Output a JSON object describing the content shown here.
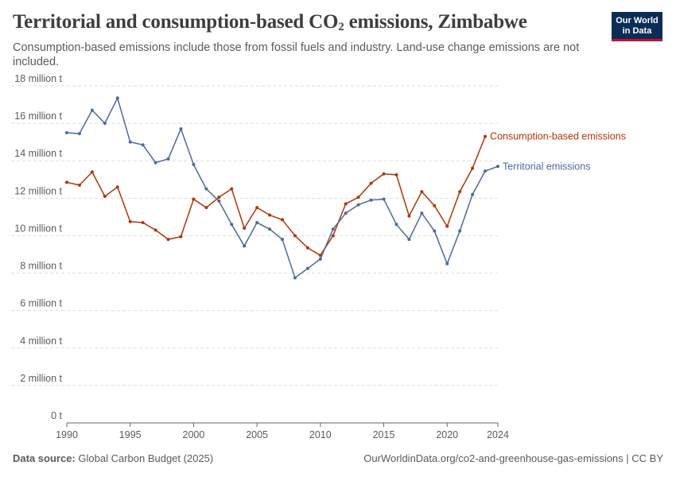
{
  "header": {
    "title_main": "Territorial and consumption-based CO",
    "title_sub": "2",
    "title_tail": " emissions, Zimbabwe",
    "subtitle": "Consumption-based emissions include those from fossil fuels and industry. Land-use change emissions are not included."
  },
  "logo": {
    "line1": "Our World",
    "line2": "in Data"
  },
  "footer": {
    "source_label": "Data source:",
    "source_value": "Global Carbon Budget (2025)",
    "url": "OurWorldinData.org/co2-and-greenhouse-gas-emissions | CC BY"
  },
  "colors": {
    "consumption": "#b13507",
    "territorial": "#4c6a9c",
    "grid": "#dddddd",
    "axis": "#666666",
    "text": "#5b5b5b"
  },
  "chart_data": {
    "type": "line",
    "title": "Territorial and consumption-based CO2 emissions, Zimbabwe",
    "ylim": [
      0,
      18
    ],
    "xlim": [
      1990,
      2024
    ],
    "yticks": [
      0,
      2,
      4,
      6,
      8,
      10,
      12,
      14,
      16,
      18
    ],
    "ytick_labels": [
      "0 t",
      "2 million t",
      "4 million t",
      "6 million t",
      "8 million t",
      "10 million t",
      "12 million t",
      "14 million t",
      "16 million t",
      "18 million t"
    ],
    "xticks": [
      1990,
      1995,
      2000,
      2005,
      2010,
      2015,
      2020,
      2024
    ],
    "xtick_labels": [
      "1990",
      "1995",
      "2000",
      "2005",
      "2010",
      "2015",
      "2020",
      "2024"
    ],
    "grid": true,
    "legend": "right-end-labels",
    "series": [
      {
        "name": "Consumption-based emissions",
        "color": "#b13507",
        "x": [
          1990,
          1991,
          1992,
          1993,
          1994,
          1995,
          1996,
          1997,
          1998,
          1999,
          2000,
          2001,
          2002,
          2003,
          2004,
          2005,
          2006,
          2007,
          2008,
          2009,
          2010,
          2011,
          2012,
          2013,
          2014,
          2015,
          2016,
          2017,
          2018,
          2019,
          2020,
          2021,
          2022,
          2023
        ],
        "values": [
          12.85,
          12.7,
          13.4,
          12.1,
          12.6,
          10.75,
          10.7,
          10.3,
          9.8,
          9.95,
          11.95,
          11.5,
          12.05,
          12.5,
          10.4,
          11.5,
          11.1,
          10.85,
          10.0,
          9.35,
          8.95,
          10.0,
          11.7,
          12.05,
          12.8,
          13.3,
          13.25,
          11.05,
          12.35,
          11.6,
          10.5,
          12.35,
          13.6,
          15.3
        ]
      },
      {
        "name": "Territorial emissions",
        "color": "#4c6a9c",
        "x": [
          1990,
          1991,
          1992,
          1993,
          1994,
          1995,
          1996,
          1997,
          1998,
          1999,
          2000,
          2001,
          2002,
          2003,
          2004,
          2005,
          2006,
          2007,
          2008,
          2009,
          2010,
          2011,
          2012,
          2013,
          2014,
          2015,
          2016,
          2017,
          2018,
          2019,
          2020,
          2021,
          2022,
          2023,
          2024
        ],
        "values": [
          15.5,
          15.45,
          16.7,
          16.0,
          17.35,
          15.0,
          14.85,
          13.9,
          14.1,
          15.7,
          13.8,
          12.5,
          11.85,
          10.6,
          9.45,
          10.7,
          10.35,
          9.8,
          7.75,
          8.25,
          8.75,
          10.35,
          11.2,
          11.65,
          11.9,
          11.95,
          10.6,
          9.8,
          11.2,
          10.25,
          8.5,
          10.25,
          12.2,
          13.45,
          13.7
        ]
      }
    ]
  }
}
